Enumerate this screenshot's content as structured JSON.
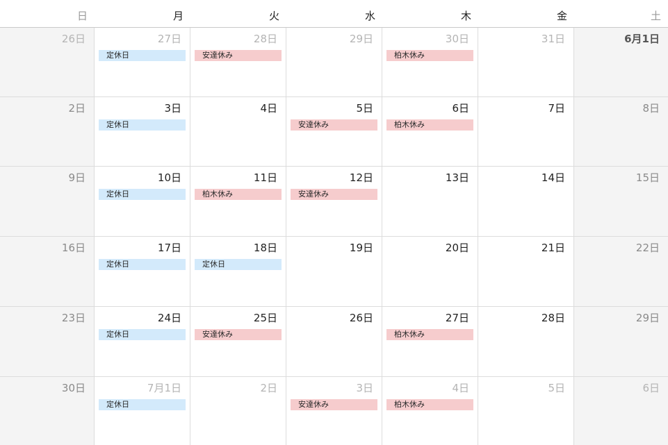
{
  "weekdays": [
    "日",
    "月",
    "火",
    "水",
    "木",
    "金",
    "土"
  ],
  "weeks": [
    {
      "days": [
        {
          "label": "26日",
          "style": "muted",
          "events": []
        },
        {
          "label": "27日",
          "style": "muted",
          "events": [
            {
              "title": "定休日",
              "color": "blue"
            }
          ]
        },
        {
          "label": "28日",
          "style": "muted",
          "events": [
            {
              "title": "安達休み",
              "color": "pink"
            }
          ]
        },
        {
          "label": "29日",
          "style": "muted",
          "events": []
        },
        {
          "label": "30日",
          "style": "muted",
          "events": [
            {
              "title": "柏木休み",
              "color": "pink"
            }
          ]
        },
        {
          "label": "31日",
          "style": "muted",
          "events": []
        },
        {
          "label": "6月1日",
          "style": "strong",
          "events": []
        }
      ]
    },
    {
      "days": [
        {
          "label": "2日",
          "style": "weekend",
          "events": []
        },
        {
          "label": "3日",
          "style": "normal",
          "events": [
            {
              "title": "定休日",
              "color": "blue"
            }
          ]
        },
        {
          "label": "4日",
          "style": "normal",
          "events": []
        },
        {
          "label": "5日",
          "style": "normal",
          "events": [
            {
              "title": "安達休み",
              "color": "pink"
            }
          ]
        },
        {
          "label": "6日",
          "style": "normal",
          "events": [
            {
              "title": "柏木休み",
              "color": "pink"
            }
          ]
        },
        {
          "label": "7日",
          "style": "normal",
          "events": []
        },
        {
          "label": "8日",
          "style": "weekend",
          "events": []
        }
      ]
    },
    {
      "days": [
        {
          "label": "9日",
          "style": "weekend",
          "events": []
        },
        {
          "label": "10日",
          "style": "normal",
          "events": [
            {
              "title": "定休日",
              "color": "blue"
            }
          ]
        },
        {
          "label": "11日",
          "style": "normal",
          "events": [
            {
              "title": "柏木休み",
              "color": "pink"
            }
          ]
        },
        {
          "label": "12日",
          "style": "normal",
          "events": [
            {
              "title": "安達休み",
              "color": "pink"
            }
          ]
        },
        {
          "label": "13日",
          "style": "normal",
          "events": []
        },
        {
          "label": "14日",
          "style": "normal",
          "events": []
        },
        {
          "label": "15日",
          "style": "weekend",
          "events": []
        }
      ]
    },
    {
      "days": [
        {
          "label": "16日",
          "style": "weekend",
          "events": []
        },
        {
          "label": "17日",
          "style": "normal",
          "events": [
            {
              "title": "定休日",
              "color": "blue"
            }
          ]
        },
        {
          "label": "18日",
          "style": "normal",
          "events": [
            {
              "title": "定休日",
              "color": "blue"
            }
          ]
        },
        {
          "label": "19日",
          "style": "normal",
          "events": []
        },
        {
          "label": "20日",
          "style": "normal",
          "events": []
        },
        {
          "label": "21日",
          "style": "normal",
          "events": []
        },
        {
          "label": "22日",
          "style": "weekend",
          "events": []
        }
      ]
    },
    {
      "days": [
        {
          "label": "23日",
          "style": "weekend",
          "events": []
        },
        {
          "label": "24日",
          "style": "normal",
          "events": [
            {
              "title": "定休日",
              "color": "blue"
            }
          ]
        },
        {
          "label": "25日",
          "style": "normal",
          "events": [
            {
              "title": "安達休み",
              "color": "pink"
            }
          ]
        },
        {
          "label": "26日",
          "style": "normal",
          "events": []
        },
        {
          "label": "27日",
          "style": "normal",
          "events": [
            {
              "title": "柏木休み",
              "color": "pink"
            }
          ]
        },
        {
          "label": "28日",
          "style": "normal",
          "events": []
        },
        {
          "label": "29日",
          "style": "weekend",
          "events": []
        }
      ]
    },
    {
      "days": [
        {
          "label": "30日",
          "style": "weekend",
          "events": []
        },
        {
          "label": "7月1日",
          "style": "muted",
          "events": [
            {
              "title": "定休日",
              "color": "blue"
            }
          ]
        },
        {
          "label": "2日",
          "style": "muted",
          "events": []
        },
        {
          "label": "3日",
          "style": "muted",
          "events": [
            {
              "title": "安達休み",
              "color": "pink"
            }
          ]
        },
        {
          "label": "4日",
          "style": "muted",
          "events": [
            {
              "title": "柏木休み",
              "color": "pink"
            }
          ]
        },
        {
          "label": "5日",
          "style": "muted",
          "events": []
        },
        {
          "label": "6日",
          "style": "muted",
          "events": []
        }
      ]
    }
  ],
  "colors": {
    "blue_event": "#d3eafb",
    "pink_event": "#f6cccd",
    "weekend_background": "#f4f4f4",
    "grid_line": "#dcdcdc"
  }
}
